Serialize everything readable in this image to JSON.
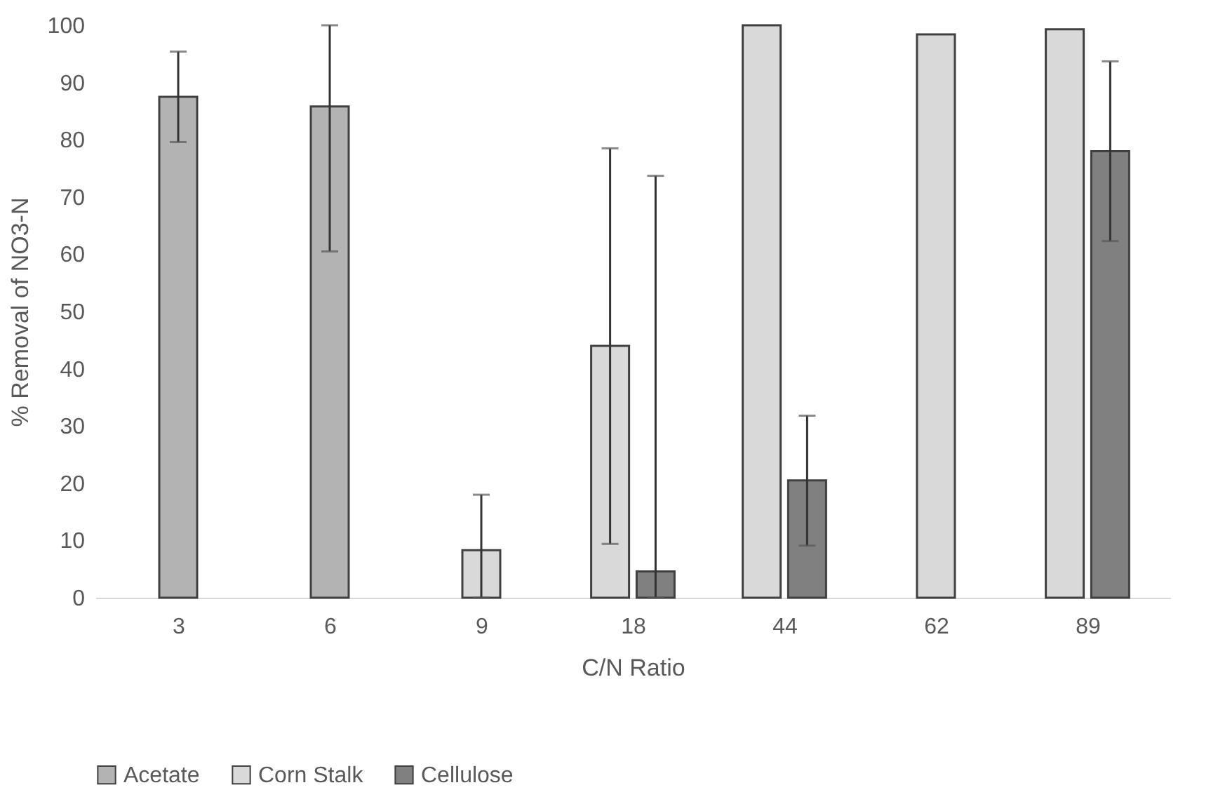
{
  "chart_data": {
    "type": "bar",
    "xlabel": "C/N Ratio",
    "ylabel": "% Removal of NO3-N",
    "categories": [
      "3",
      "6",
      "9",
      "18",
      "44",
      "62",
      "89"
    ],
    "series": [
      {
        "name": "Acetate",
        "color": "#b3b3b3",
        "values": [
          87.5,
          85.8,
          null,
          null,
          null,
          null,
          null
        ],
        "errors": [
          [
            79.6,
            95.4
          ],
          [
            60.5,
            100
          ],
          null,
          null,
          null,
          null,
          null
        ]
      },
      {
        "name": "Corn Stalk",
        "color": "#d9d9d9",
        "values": [
          null,
          null,
          8.3,
          44.0,
          100,
          98.4,
          99.3
        ],
        "errors": [
          null,
          null,
          [
            0,
            18.0
          ],
          [
            9.4,
            78.5
          ],
          null,
          null,
          null
        ]
      },
      {
        "name": "Cellulose",
        "color": "#808080",
        "values": [
          null,
          null,
          null,
          4.6,
          20.5,
          null,
          78.0
        ],
        "errors": [
          null,
          null,
          null,
          [
            0,
            73.7
          ],
          [
            9.1,
            31.8
          ],
          null,
          [
            62.3,
            93.7
          ]
        ]
      }
    ],
    "ylim": [
      0,
      100
    ],
    "yticks": [
      0,
      10,
      20,
      30,
      40,
      50,
      60,
      70,
      80,
      90,
      100
    ],
    "grid": false,
    "legend": "bottom"
  }
}
